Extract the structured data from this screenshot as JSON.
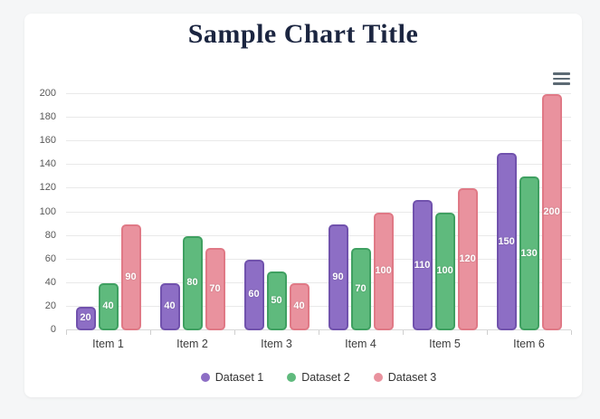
{
  "header": {
    "title": "Sample Chart Title"
  },
  "toolbar": {
    "menu_icon": "hamburger-menu-icon"
  },
  "colors": {
    "page_background": "#f5f6f7",
    "card_background": "#ffffff",
    "title_color": "#1b2540",
    "gridline_color": "#e9e9e9",
    "axis_line_color": "#d8d8d8",
    "y_label_color": "#585858",
    "x_label_color": "#3d3d3d",
    "legend_text_color": "#333333",
    "menu_icon_color": "#5c6a74",
    "bar_value_label_color": "#ffffff"
  },
  "chart_data": {
    "type": "bar",
    "title": "Sample Chart Title",
    "categories": [
      "Item 1",
      "Item 2",
      "Item 3",
      "Item 4",
      "Item 5",
      "Item 6"
    ],
    "series": [
      {
        "name": "Dataset 1",
        "color": "#8d6ec5",
        "border_color": "#7152ad",
        "values": [
          20,
          40,
          60,
          90,
          110,
          150
        ]
      },
      {
        "name": "Dataset 2",
        "color": "#5fba7d",
        "border_color": "#3fa061",
        "values": [
          40,
          80,
          50,
          70,
          100,
          130
        ]
      },
      {
        "name": "Dataset 3",
        "color": "#e9929e",
        "border_color": "#e07986",
        "values": [
          90,
          70,
          40,
          100,
          120,
          200
        ]
      }
    ],
    "ylim": [
      0,
      200
    ],
    "ytick_step": 20,
    "ytick_labels": [
      "0",
      "20",
      "40",
      "60",
      "80",
      "100",
      "120",
      "140",
      "160",
      "180",
      "200"
    ],
    "grid": true,
    "legend_position": "bottom",
    "value_labels": "centered inside bars, white bold",
    "xlabel": "",
    "ylabel": ""
  }
}
